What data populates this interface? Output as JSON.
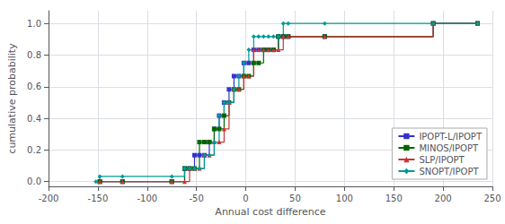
{
  "chart_data": {
    "type": "step",
    "xlabel": "Annual cost difference",
    "ylabel": "cumulative probability",
    "xlim": [
      -200,
      250
    ],
    "ylim": [
      -0.03,
      1.08
    ],
    "xticks": [
      -200,
      -150,
      -100,
      -50,
      0,
      50,
      100,
      150,
      200,
      250
    ],
    "yticks": [
      {
        "value": 0,
        "label": "0.0"
      },
      0.2,
      0.4,
      0.6,
      0.8,
      {
        "value": 1,
        "label": "1.0"
      }
    ],
    "grid": true,
    "legend": "lower right",
    "series": [
      {
        "name": "IPOPT-L/IPOPT",
        "color": "#3333cc",
        "marker": "square",
        "x": [
          -148,
          -125,
          -75,
          -62,
          -57,
          -52,
          -47,
          -42,
          -37,
          -32,
          -27,
          -22,
          -17,
          -12,
          -7,
          -2,
          3,
          8,
          13,
          18,
          23,
          28,
          33,
          38,
          43,
          80,
          190,
          235
        ],
        "values": [
          0.0,
          0.0,
          0.0,
          0.083,
          0.083,
          0.167,
          0.167,
          0.167,
          0.25,
          0.333,
          0.417,
          0.5,
          0.583,
          0.667,
          0.667,
          0.75,
          0.75,
          0.833,
          0.833,
          0.833,
          0.833,
          0.833,
          0.917,
          0.917,
          0.917,
          0.917,
          1.0,
          1.0
        ]
      },
      {
        "name": "MINOS/IPOPT",
        "color": "#006600",
        "marker": "square",
        "x": [
          -148,
          -125,
          -75,
          -62,
          -57,
          -52,
          -47,
          -42,
          -37,
          -32,
          -27,
          -22,
          -17,
          -12,
          -7,
          -2,
          3,
          8,
          13,
          18,
          23,
          28,
          33,
          38,
          43,
          80,
          190,
          235
        ],
        "values": [
          0.0,
          0.0,
          0.0,
          0.083,
          0.083,
          0.083,
          0.25,
          0.25,
          0.25,
          0.333,
          0.333,
          0.417,
          0.5,
          0.583,
          0.583,
          0.667,
          0.667,
          0.75,
          0.75,
          0.833,
          0.833,
          0.833,
          0.917,
          0.917,
          0.917,
          0.917,
          1.0,
          1.0
        ]
      },
      {
        "name": "SLP/IPOPT",
        "color": "#cc3333",
        "marker": "triangle",
        "x": [
          -148,
          -125,
          -75,
          -62,
          -57,
          -52,
          -47,
          -42,
          -37,
          -32,
          -27,
          -22,
          -17,
          -12,
          -7,
          -2,
          3,
          8,
          13,
          18,
          23,
          28,
          33,
          38,
          43,
          80,
          190,
          235
        ],
        "values": [
          0.0,
          0.0,
          0.0,
          0.0,
          0.083,
          0.083,
          0.083,
          0.167,
          0.167,
          0.25,
          0.25,
          0.333,
          0.5,
          0.583,
          0.583,
          0.667,
          0.667,
          0.833,
          0.833,
          0.833,
          0.833,
          0.833,
          0.833,
          0.917,
          0.917,
          0.917,
          1.0,
          1.0
        ]
      },
      {
        "name": "SNOPT/IPOPT",
        "color": "#009999",
        "marker": "diamond",
        "x": [
          -152,
          -148,
          -125,
          -75,
          -62,
          -57,
          -52,
          -47,
          -42,
          -37,
          -32,
          -27,
          -22,
          -17,
          -12,
          -7,
          -2,
          3,
          8,
          13,
          18,
          23,
          28,
          33,
          38,
          43,
          80,
          190,
          235
        ],
        "values": [
          0.0,
          0.033,
          0.033,
          0.033,
          0.083,
          0.083,
          0.083,
          0.083,
          0.167,
          0.167,
          0.25,
          0.417,
          0.5,
          0.5,
          0.583,
          0.667,
          0.75,
          0.833,
          0.917,
          0.917,
          0.917,
          0.917,
          0.917,
          0.917,
          1.0,
          1.0,
          1.0,
          1.0,
          1.0
        ]
      }
    ]
  }
}
